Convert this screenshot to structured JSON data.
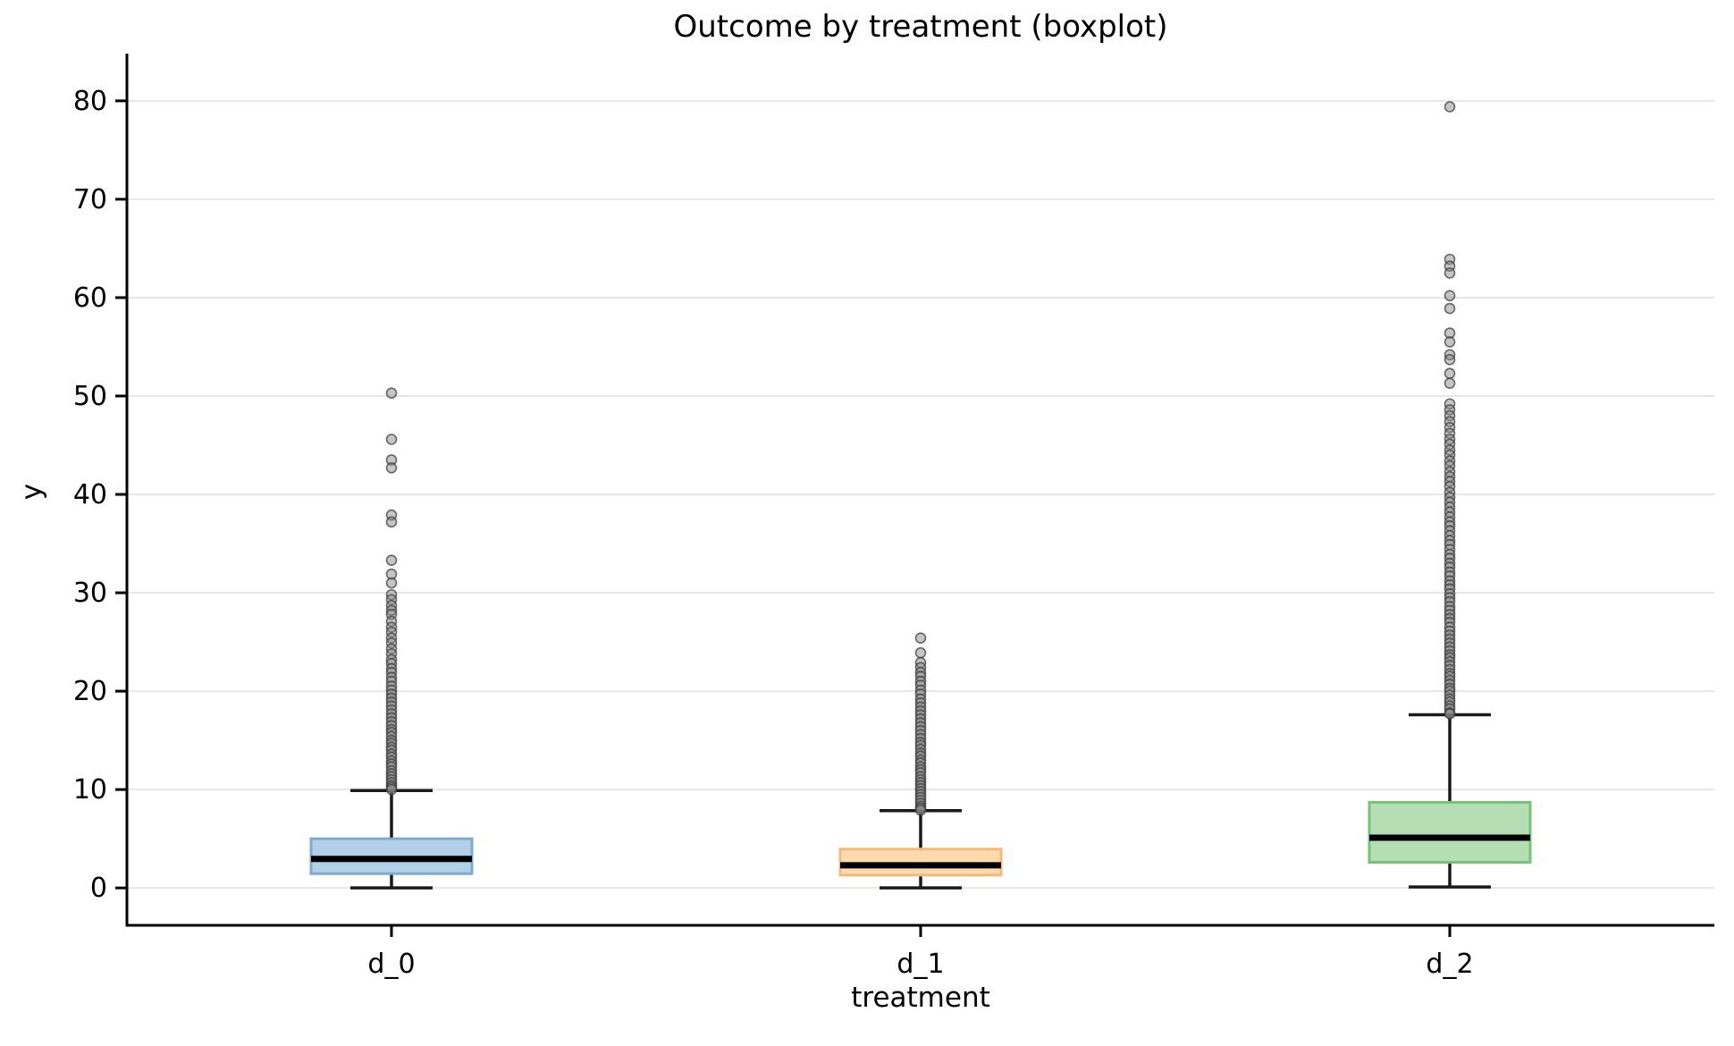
{
  "figure": {
    "background": "#ffffff"
  },
  "chart_data": {
    "type": "boxplot",
    "title": "Outcome by treatment (boxplot)",
    "xlabel": "treatment",
    "ylabel": "y",
    "categories": [
      "d_0",
      "d_1",
      "d_2"
    ],
    "yticks": [
      0,
      10,
      20,
      30,
      40,
      50,
      60,
      70,
      80
    ],
    "ylim": [
      -3.8,
      84.8
    ],
    "grid": "horizontal",
    "legend": "none",
    "style": {
      "gridline_color": "#e6e6e6",
      "spine_color": "#000000",
      "median_color": "#000000",
      "whisker_color": "#1a1a1a",
      "outlier_fill": "rgba(140,140,140,0.5)",
      "outlier_edge": "rgba(60,60,60,0.75)",
      "outlier_radius": 5.5
    },
    "series": [
      {
        "name": "d_0",
        "whisker_low": 0.0,
        "q1": 1.45,
        "median": 2.95,
        "q3": 5.0,
        "whisker_high": 9.9,
        "fill": "#b2d0e7",
        "edge": "#7fabd1",
        "outliers": [
          50.3,
          45.6,
          43.5,
          42.7,
          37.9,
          37.2,
          33.3,
          31.9,
          31.0,
          29.8,
          29.3,
          28.7,
          28.2,
          27.8,
          27.1,
          26.5,
          26.0,
          25.4,
          24.9,
          24.3,
          23.8,
          23.2,
          22.8,
          22.3,
          21.9,
          21.4,
          21.0,
          20.5,
          20.1,
          19.7,
          19.3,
          18.9,
          18.5,
          18.1,
          17.7,
          17.3,
          16.9,
          16.5,
          16.1,
          15.8,
          15.4,
          15.0,
          14.7,
          14.3,
          14.0,
          13.6,
          13.3,
          12.9,
          12.6,
          12.3,
          11.9,
          11.6,
          11.3,
          11.0,
          10.7,
          10.4,
          10.2,
          10.0
        ]
      },
      {
        "name": "d_1",
        "whisker_low": 0.0,
        "q1": 1.3,
        "median": 2.3,
        "q3": 3.95,
        "whisker_high": 7.85,
        "fill": "#fed9ab",
        "edge": "#f4b97f",
        "outliers": [
          25.4,
          23.9,
          22.9,
          22.4,
          21.9,
          21.5,
          21.0,
          20.6,
          20.1,
          19.7,
          19.2,
          18.8,
          18.4,
          18.0,
          17.6,
          17.2,
          16.8,
          16.4,
          16.0,
          15.6,
          15.2,
          14.8,
          14.5,
          14.1,
          13.7,
          13.4,
          13.0,
          12.7,
          12.3,
          12.0,
          11.7,
          11.3,
          11.0,
          10.7,
          10.4,
          10.1,
          9.8,
          9.5,
          9.2,
          8.9,
          8.6,
          8.3,
          8.1,
          7.9
        ]
      },
      {
        "name": "d_2",
        "whisker_low": 0.1,
        "q1": 2.6,
        "median": 5.1,
        "q3": 8.7,
        "whisker_high": 17.6,
        "fill": "#b5deb5",
        "edge": "#77c277",
        "outliers": [
          79.4,
          63.9,
          63.2,
          62.5,
          60.2,
          58.9,
          56.4,
          55.5,
          54.2,
          53.7,
          52.3,
          51.3,
          49.2,
          48.6,
          48.0,
          47.4,
          46.8,
          46.2,
          45.6,
          45.1,
          44.5,
          44.0,
          43.4,
          42.9,
          42.3,
          41.8,
          41.3,
          40.8,
          40.2,
          39.7,
          39.2,
          38.7,
          38.2,
          37.7,
          37.2,
          36.8,
          36.3,
          35.8,
          35.3,
          34.9,
          34.4,
          33.9,
          33.5,
          33.0,
          32.6,
          32.1,
          31.7,
          31.2,
          30.8,
          30.4,
          29.9,
          29.5,
          29.1,
          28.6,
          28.2,
          27.8,
          27.4,
          27.0,
          26.5,
          26.1,
          25.7,
          25.3,
          24.9,
          24.5,
          24.1,
          23.7,
          23.4,
          23.0,
          22.6,
          22.2,
          21.8,
          21.5,
          21.1,
          20.7,
          20.3,
          20.0,
          19.6,
          19.2,
          18.9,
          18.5,
          18.2,
          17.8,
          17.7
        ]
      }
    ]
  }
}
